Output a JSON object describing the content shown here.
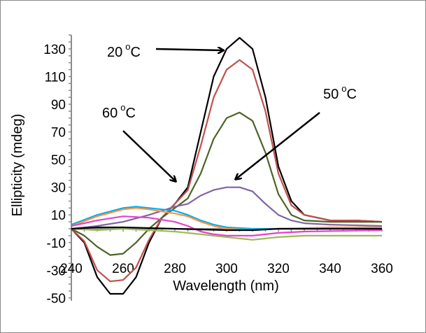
{
  "chart_data": {
    "type": "line",
    "xlabel": "Wavelength (nm)",
    "ylabel": "Ellipticity (mdeg)",
    "xlim": [
      240,
      360
    ],
    "ylim": [
      -50,
      140
    ],
    "xticks": [
      240,
      260,
      280,
      300,
      320,
      340,
      360
    ],
    "yticks": [
      130,
      110,
      90,
      70,
      50,
      30,
      10,
      -10,
      -30,
      -50
    ],
    "grid": false,
    "annotations": [
      {
        "text": "20 °C",
        "label": "20",
        "unit": "C",
        "points_to": [
          305,
          131
        ]
      },
      {
        "text": "60 °C",
        "label": "60",
        "unit": "C",
        "points_to": [
          282,
          25
        ]
      },
      {
        "text": "50 °C",
        "label": "50",
        "unit": "C",
        "points_to": [
          303,
          35
        ]
      }
    ],
    "series": [
      {
        "color": "#000000",
        "x": [
          240,
          245,
          250,
          255,
          260,
          265,
          270,
          275,
          280,
          285,
          290,
          295,
          300,
          305,
          310,
          315,
          320,
          325,
          330,
          340,
          350,
          360
        ],
        "y": [
          0,
          -10,
          -35,
          -47,
          -47,
          -35,
          -10,
          8,
          18,
          30,
          70,
          110,
          130,
          138,
          130,
          95,
          45,
          20,
          10,
          6,
          6,
          5
        ]
      },
      {
        "color": "#c0504d",
        "x": [
          240,
          245,
          250,
          255,
          260,
          265,
          270,
          275,
          280,
          285,
          290,
          295,
          300,
          305,
          310,
          315,
          320,
          325,
          330,
          340,
          350,
          360
        ],
        "y": [
          0,
          -9,
          -30,
          -38,
          -37,
          -28,
          -8,
          8,
          18,
          28,
          60,
          95,
          115,
          122,
          115,
          85,
          40,
          17,
          10,
          6,
          6,
          5
        ]
      },
      {
        "color": "#4f6228",
        "x": [
          240,
          245,
          250,
          255,
          260,
          265,
          270,
          275,
          280,
          285,
          290,
          295,
          300,
          305,
          310,
          315,
          320,
          325,
          330,
          340,
          350,
          360
        ],
        "y": [
          0,
          -5,
          -13,
          -19,
          -18,
          -10,
          0,
          8,
          15,
          22,
          40,
          65,
          80,
          84,
          78,
          55,
          25,
          10,
          6,
          5,
          5,
          5
        ]
      },
      {
        "color": "#8064a2",
        "x": [
          240,
          250,
          260,
          270,
          280,
          285,
          290,
          295,
          300,
          305,
          310,
          315,
          320,
          325,
          330,
          340,
          360
        ],
        "y": [
          0,
          2,
          5,
          10,
          16,
          18,
          24,
          28,
          30,
          30,
          27,
          18,
          10,
          6,
          4,
          3,
          2
        ]
      },
      {
        "color": "#00b0f0",
        "x": [
          240,
          250,
          260,
          265,
          270,
          280,
          285,
          290,
          295,
          300,
          310,
          320,
          330,
          360
        ],
        "y": [
          3,
          10,
          15,
          16,
          15,
          13,
          10,
          6,
          3,
          1,
          0,
          0,
          0,
          0
        ]
      },
      {
        "color": "#f79646",
        "x": [
          240,
          250,
          260,
          265,
          270,
          280,
          285,
          290,
          295,
          300,
          310,
          320,
          340,
          360
        ],
        "y": [
          2,
          9,
          14,
          15,
          14,
          11,
          9,
          5,
          2,
          0,
          -1,
          0,
          1,
          1
        ]
      },
      {
        "color": "#e541d0",
        "x": [
          240,
          250,
          260,
          270,
          280,
          285,
          290,
          295,
          300,
          310,
          320,
          330,
          360
        ],
        "y": [
          2,
          6,
          9,
          8,
          5,
          2,
          -2,
          -4,
          -5,
          -5,
          -3,
          -2,
          -1
        ]
      },
      {
        "color": "#9bbb59",
        "x": [
          240,
          250,
          260,
          270,
          280,
          290,
          300,
          310,
          320,
          330,
          360
        ],
        "y": [
          0,
          -1,
          0,
          -1,
          -2,
          -4,
          -6,
          -8,
          -6,
          -5,
          -5
        ]
      },
      {
        "color": "#000000",
        "x": [
          240,
          250,
          260,
          280,
          300,
          310,
          320,
          360
        ],
        "y": [
          0,
          1,
          1,
          0,
          -1,
          -1,
          0,
          0
        ]
      }
    ]
  }
}
